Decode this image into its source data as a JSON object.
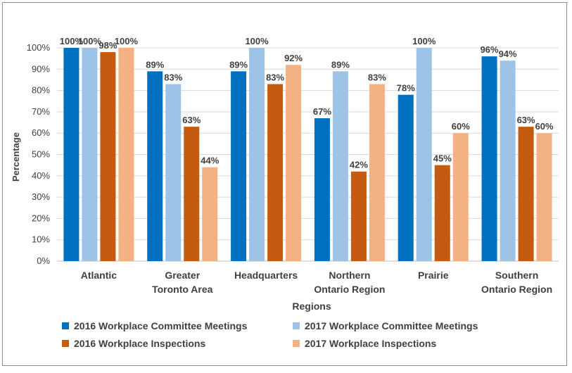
{
  "chart_data": {
    "type": "bar",
    "ylabel": "Percentage",
    "xlabel": "Regions",
    "ylim": [
      0,
      100
    ],
    "yticks": [
      "0%",
      "10%",
      "20%",
      "30%",
      "40%",
      "50%",
      "60%",
      "70%",
      "80%",
      "90%",
      "100%"
    ],
    "grid": true,
    "legend_position": "bottom",
    "categories": [
      [
        "Atlantic"
      ],
      [
        "Greater",
        "Toronto Area"
      ],
      [
        "Headquarters"
      ],
      [
        "Northern",
        "Ontario Region"
      ],
      [
        "Prairie"
      ],
      [
        "Southern",
        "Ontario Region"
      ]
    ],
    "series": [
      {
        "name": "2016 Workplace Committee Meetings",
        "color": "#0070c0",
        "values": [
          100,
          89,
          89,
          67,
          78,
          96
        ],
        "labels": [
          "100%",
          "89%",
          "89%",
          "67%",
          "78%",
          "96%"
        ]
      },
      {
        "name": "2017 Workplace Committee  Meetings",
        "color": "#9dc3e6",
        "values": [
          100,
          83,
          100,
          89,
          100,
          94
        ],
        "labels": [
          "100%",
          "83%",
          "100%",
          "89%",
          "100%",
          "94%"
        ]
      },
      {
        "name": "2016 Workplace Inspections",
        "color": "#c55a11",
        "values": [
          98,
          63,
          83,
          42,
          45,
          63
        ],
        "labels": [
          "98%",
          "63%",
          "83%",
          "42%",
          "45%",
          "63%"
        ]
      },
      {
        "name": "2017 Workplace Inspections",
        "color": "#f4b183",
        "values": [
          100,
          44,
          92,
          83,
          60,
          60
        ],
        "labels": [
          "100%",
          "44%",
          "92%",
          "83%",
          "60%",
          "60%"
        ]
      }
    ]
  }
}
